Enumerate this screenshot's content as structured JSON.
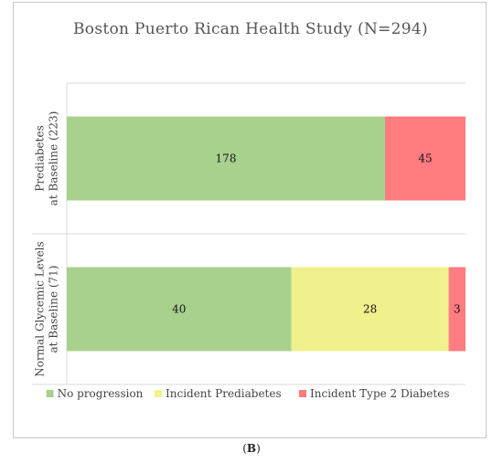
{
  "caption": {
    "open": "(",
    "letter": "B",
    "close": ")"
  },
  "chart_data": {
    "type": "bar",
    "orientation": "horizontal",
    "stacked": true,
    "title": "Boston Puerto Rican Health Study (N=294)",
    "categories": [
      [
        "Prediabetes",
        "at Baseline (223)"
      ],
      [
        "Normal Glycemic Levels",
        "at Baseline (71)"
      ]
    ],
    "series": [
      {
        "name": "No progression",
        "color": "#a9d18e",
        "values": [
          178,
          40
        ]
      },
      {
        "name": "Incident Prediabetes",
        "color": "#f0f08c",
        "values": [
          0,
          28
        ]
      },
      {
        "name": "Incident Type 2 Diabetes",
        "color": "#ff7c80",
        "values": [
          45,
          3
        ]
      }
    ],
    "legend": "bottom",
    "grid": false
  }
}
